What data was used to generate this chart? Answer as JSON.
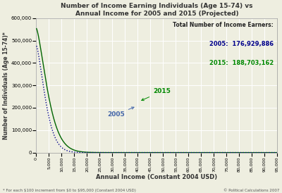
{
  "title": "Number of Income Earning Individuals (Age 15-74) vs\nAnnual Income for 2005 and 2015 (Projected)",
  "xlabel": "Annual Income (Constant 2004 USD)",
  "ylabel": "Number of Individuals (Age 15-74)*",
  "xlim": [
    0,
    95000
  ],
  "ylim": [
    0,
    600000
  ],
  "x_ticks": [
    0,
    5000,
    10000,
    15000,
    20000,
    25000,
    30000,
    35000,
    40000,
    45000,
    50000,
    55000,
    60000,
    65000,
    70000,
    75000,
    80000,
    85000,
    90000,
    95000
  ],
  "y_ticks": [
    0,
    100000,
    200000,
    300000,
    400000,
    500000,
    600000
  ],
  "color_2005": "#00008B",
  "color_2015": "#006400",
  "annotation_color_2005": "#4466aa",
  "annotation_color_2015": "#008800",
  "total_label_color_2005": "#00008B",
  "total_label_color_2015": "#008800",
  "bg_color": "#eeeee0",
  "grid_color": "#ffffff",
  "footnote": "* For each $100 increment from $0 to $95,000 (Constant 2004 USD)",
  "copyright": "© Political Calculations 2007",
  "total_2005": "176,929,886",
  "total_2015": "188,703,162",
  "param_2005": {
    "a": 478000,
    "k": 4.8e-06,
    "p": 1.45
  },
  "param_2015": {
    "a": 555000,
    "k": 4.2e-06,
    "p": 1.43
  }
}
